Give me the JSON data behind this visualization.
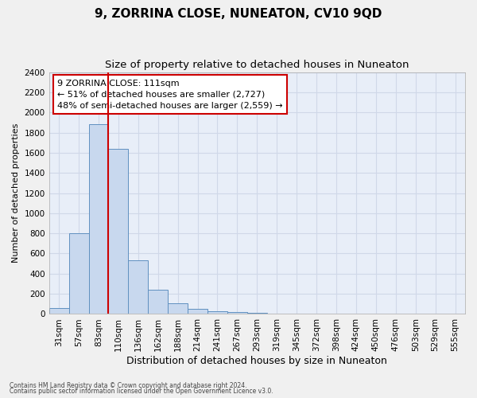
{
  "title": "9, ZORRINA CLOSE, NUNEATON, CV10 9QD",
  "subtitle": "Size of property relative to detached houses in Nuneaton",
  "xlabel": "Distribution of detached houses by size in Nuneaton",
  "ylabel": "Number of detached properties",
  "footnote1": "Contains HM Land Registry data © Crown copyright and database right 2024.",
  "footnote2": "Contains public sector information licensed under the Open Government Licence v3.0.",
  "categories": [
    "31sqm",
    "57sqm",
    "83sqm",
    "110sqm",
    "136sqm",
    "162sqm",
    "188sqm",
    "214sqm",
    "241sqm",
    "267sqm",
    "293sqm",
    "319sqm",
    "345sqm",
    "372sqm",
    "398sqm",
    "424sqm",
    "450sqm",
    "476sqm",
    "503sqm",
    "529sqm",
    "555sqm"
  ],
  "values": [
    60,
    800,
    1880,
    1640,
    530,
    240,
    105,
    50,
    30,
    20,
    12,
    2,
    0,
    0,
    0,
    0,
    0,
    0,
    0,
    0,
    0
  ],
  "bar_color": "#c8d8ee",
  "bar_edge_color": "#6090c0",
  "highlight_bar_index": 3,
  "highlight_line_color": "#cc0000",
  "annotation_text": "9 ZORRINA CLOSE: 111sqm\n← 51% of detached houses are smaller (2,727)\n48% of semi-detached houses are larger (2,559) →",
  "annotation_box_color": "#ffffff",
  "annotation_box_edge": "#cc0000",
  "ylim": [
    0,
    2400
  ],
  "yticks": [
    0,
    200,
    400,
    600,
    800,
    1000,
    1200,
    1400,
    1600,
    1800,
    2000,
    2200,
    2400
  ],
  "background_color": "#f0f0f0",
  "plot_background": "#e8eef8",
  "grid_color": "#d0d8e8",
  "title_fontsize": 11,
  "subtitle_fontsize": 9.5,
  "tick_fontsize": 7.5,
  "ylabel_fontsize": 8,
  "xlabel_fontsize": 9
}
